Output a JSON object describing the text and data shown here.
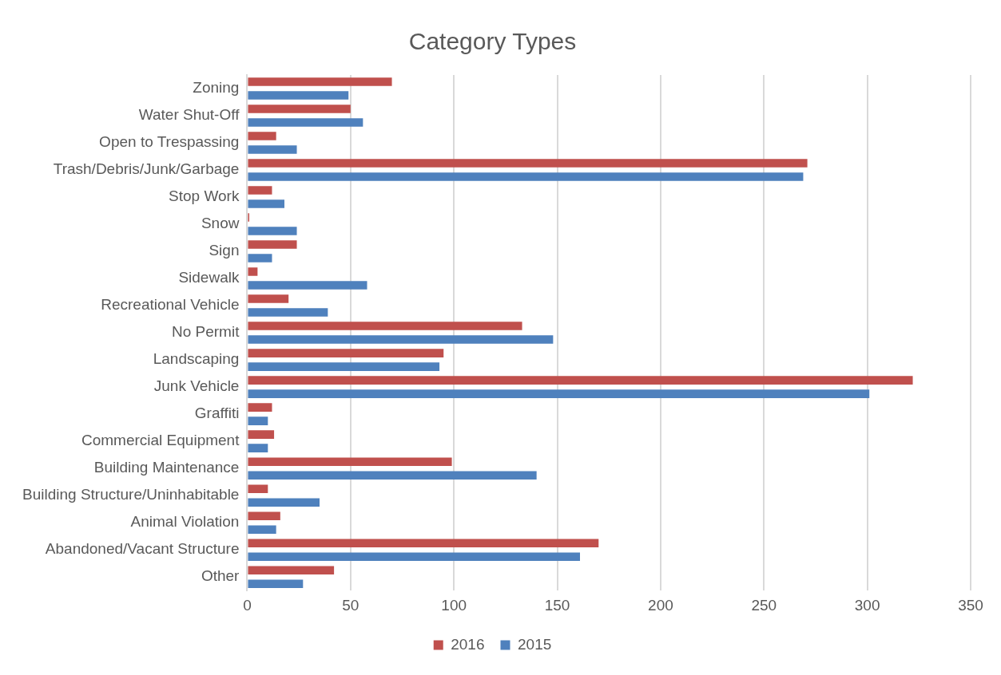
{
  "chart_data": {
    "type": "bar",
    "orientation": "horizontal",
    "title": "Category Types",
    "categories": [
      "Zoning",
      "Water Shut-Off",
      "Open to Trespassing",
      "Trash/Debris/Junk/Garbage",
      "Stop Work",
      "Snow",
      "Sign",
      "Sidewalk",
      "Recreational Vehicle",
      "No Permit",
      "Landscaping",
      "Junk Vehicle",
      "Graffiti",
      "Commercial Equipment",
      "Building Maintenance",
      "Building Structure/Uninhabitable",
      "Animal Violation",
      "Abandoned/Vacant Structure",
      "Other"
    ],
    "series": [
      {
        "name": "2016",
        "color": "#c0504d",
        "values": [
          70,
          50,
          14,
          271,
          12,
          1,
          24,
          5,
          20,
          133,
          95,
          322,
          12,
          13,
          99,
          10,
          16,
          170,
          42
        ]
      },
      {
        "name": "2015",
        "color": "#4f81bd",
        "values": [
          49,
          56,
          24,
          269,
          18,
          24,
          12,
          58,
          39,
          148,
          93,
          301,
          10,
          10,
          140,
          35,
          14,
          161,
          27
        ]
      }
    ],
    "xlim": [
      0,
      350
    ],
    "xticks": [
      0,
      50,
      100,
      150,
      200,
      250,
      300,
      350
    ],
    "grid": "x",
    "legend": "bottom"
  }
}
